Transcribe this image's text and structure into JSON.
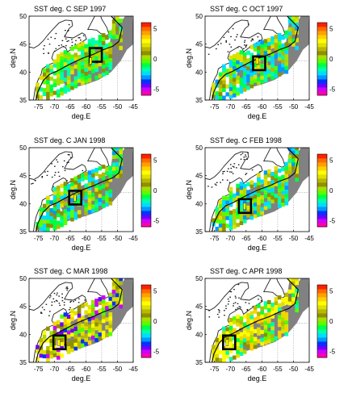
{
  "figure": {
    "panels": [
      {
        "title": "SST deg. C  SEP  1997",
        "box_lon": -57,
        "box_lat": 43
      },
      {
        "title": "SST deg. C  OCT  1997",
        "box_lon": -61,
        "box_lat": 41.5
      },
      {
        "title": "SST deg. C  JAN  1998",
        "box_lon": -63.5,
        "box_lat": 41
      },
      {
        "title": "SST deg. C  FEB  1998",
        "box_lon": -65.5,
        "box_lat": 39.5
      },
      {
        "title": "SST deg. C  MAR  1998",
        "box_lon": -68.5,
        "box_lat": 38.5
      },
      {
        "title": "SST deg. C  APR  1998",
        "box_lon": -70.5,
        "box_lat": 38.5
      }
    ],
    "xlabel": "deg.E",
    "ylabel": "deg.N",
    "xticks": [
      "-75",
      "-70",
      "-65",
      "-60",
      "-55",
      "-50",
      "-45"
    ],
    "yticks": [
      "50",
      "45",
      "40",
      "35"
    ],
    "colorbar_ticks": [
      "5",
      "0",
      "-5"
    ]
  },
  "chart_data": [
    {
      "type": "heatmap",
      "title": "SST deg. C  SEP  1997",
      "xlabel": "deg.E",
      "ylabel": "deg.N",
      "xlim": [
        -78,
        -45
      ],
      "ylim": [
        35,
        50
      ],
      "colorbar_range": [
        -6,
        6
      ],
      "colorbar_ticks": [
        5,
        0,
        -5
      ],
      "highlight_box_center": [
        -57,
        43
      ],
      "gap_marker_center": [
        -58.5,
        42
      ]
    },
    {
      "type": "heatmap",
      "title": "SST deg. C  OCT  1997",
      "xlabel": "deg.E",
      "ylabel": "deg.N",
      "xlim": [
        -78,
        -45
      ],
      "ylim": [
        35,
        50
      ],
      "colorbar_range": [
        -6,
        6
      ],
      "colorbar_ticks": [
        5,
        0,
        -5
      ],
      "highlight_box_center": [
        -61,
        41.5
      ],
      "gap_marker_center": [
        -61.5,
        42
      ]
    },
    {
      "type": "heatmap",
      "title": "SST deg. C  JAN  1998",
      "xlabel": "deg.E",
      "ylabel": "deg.N",
      "xlim": [
        -78,
        -45
      ],
      "ylim": [
        35,
        50
      ],
      "colorbar_range": [
        -6,
        6
      ],
      "colorbar_ticks": [
        5,
        0,
        -5
      ],
      "highlight_box_center": [
        -63.5,
        41
      ],
      "gap_marker_center": [
        -63.5,
        41
      ]
    },
    {
      "type": "heatmap",
      "title": "SST deg. C  FEB  1998",
      "xlabel": "deg.E",
      "ylabel": "deg.N",
      "xlim": [
        -78,
        -45
      ],
      "ylim": [
        35,
        50
      ],
      "colorbar_range": [
        -6,
        6
      ],
      "colorbar_ticks": [
        5,
        0,
        -5
      ],
      "highlight_box_center": [
        -65.5,
        39.5
      ],
      "gap_marker_center": [
        -65.5,
        39.5
      ]
    },
    {
      "type": "heatmap",
      "title": "SST deg. C  MAR  1998",
      "xlabel": "deg.E",
      "ylabel": "deg.N",
      "xlim": [
        -78,
        -45
      ],
      "ylim": [
        35,
        50
      ],
      "colorbar_range": [
        -6,
        6
      ],
      "colorbar_ticks": [
        5,
        0,
        -5
      ],
      "highlight_box_center": [
        -68.5,
        38.5
      ],
      "gap_marker_center": [
        -68.5,
        38.5
      ]
    },
    {
      "type": "heatmap",
      "title": "SST deg. C  APR  1998",
      "xlabel": "deg.E",
      "ylabel": "deg.N",
      "xlim": [
        -78,
        -45
      ],
      "ylim": [
        35,
        50
      ],
      "colorbar_range": [
        -6,
        6
      ],
      "colorbar_ticks": [
        5,
        0,
        -5
      ],
      "highlight_box_center": [
        -70.5,
        38.5
      ],
      "gap_marker_center": [
        -71,
        38.5
      ]
    }
  ],
  "colors": {
    "land": "#7a7a7a",
    "land_edge": "#222222",
    "grid": "#888888",
    "box": "#000000",
    "colorscale": [
      "#ff00aa",
      "#cc00ff",
      "#6a00ff",
      "#0033ff",
      "#0099ff",
      "#00ddff",
      "#00ffaa",
      "#00ff44",
      "#55ff00",
      "#aadd00",
      "#8f8f00",
      "#b8b800",
      "#e0e000",
      "#ffff00",
      "#ffd000",
      "#ffa000",
      "#ff6a00",
      "#ff2000"
    ]
  }
}
